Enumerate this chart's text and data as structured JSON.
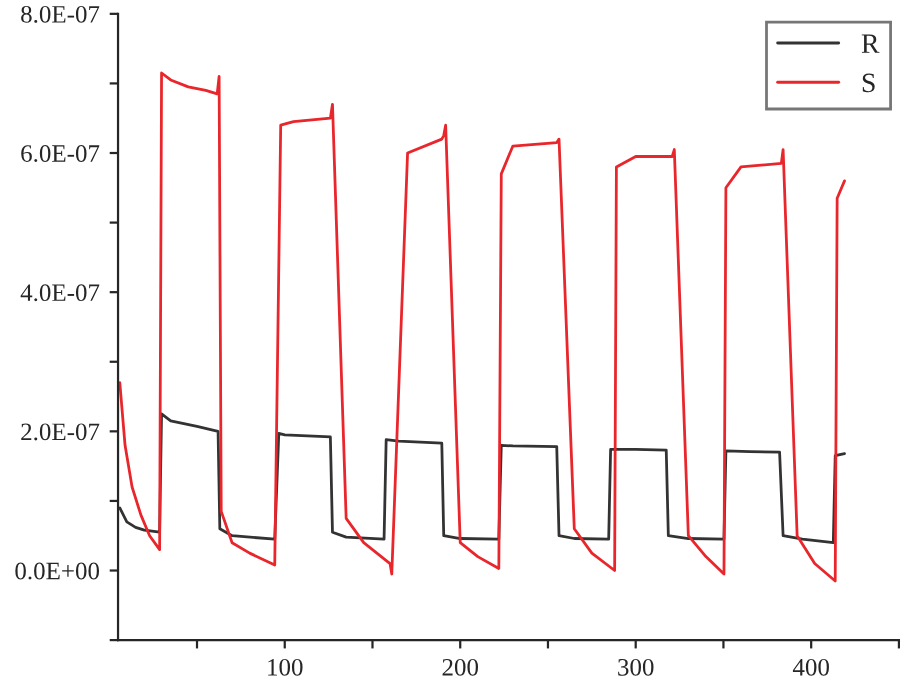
{
  "chart_data": {
    "type": "line",
    "xlim": [
      5,
      450
    ],
    "xticks": [
      {
        "value": 50,
        "label": null
      },
      100,
      {
        "value": 150,
        "label": null
      },
      200,
      {
        "value": 250,
        "label": null
      },
      300,
      {
        "value": 350,
        "label": null
      },
      400,
      {
        "value": 450,
        "label": null
      }
    ],
    "ylim": [
      -1e-07,
      8e-07
    ],
    "yticks": [
      {
        "value": -1e-07,
        "label": null
      },
      {
        "value": 0,
        "label": "0.0E+00"
      },
      {
        "value": 1e-07,
        "label": null
      },
      {
        "value": 2e-07,
        "label": "2.0E-07"
      },
      {
        "value": 3e-07,
        "label": null
      },
      {
        "value": 4e-07,
        "label": "4.0E-07"
      },
      {
        "value": 5e-07,
        "label": null
      },
      {
        "value": 6e-07,
        "label": "6.0E-07"
      },
      {
        "value": 7e-07,
        "label": null
      },
      {
        "value": 8e-07,
        "label": "8.0E-07"
      }
    ],
    "legend": "top right",
    "grid": false,
    "series": [
      {
        "name": "R",
        "color": "#333333",
        "x": [
          6,
          10,
          15,
          20,
          28.7,
          29.8,
          35,
          50,
          62,
          63,
          70,
          94.3,
          96.6,
          100,
          126,
          127.2,
          135,
          156.6,
          157.8,
          165,
          189.5,
          190.6,
          200,
          222,
          223.4,
          230,
          255,
          256.3,
          265,
          284.6,
          285.7,
          300,
          317.4,
          318.6,
          330,
          350.3,
          351.4,
          365,
          382,
          384,
          395,
          412.6,
          413.7,
          419
        ],
        "values": [
          9e-08,
          7e-08,
          6.2e-08,
          5.8e-08,
          5.5e-08,
          2.25e-07,
          2.15e-07,
          2.07e-07,
          2e-07,
          6e-08,
          5e-08,
          4.5e-08,
          1.97e-07,
          1.95e-07,
          1.92e-07,
          5.5e-08,
          4.8e-08,
          4.5e-08,
          1.88e-07,
          1.86e-07,
          1.83e-07,
          5e-08,
          4.6e-08,
          4.5e-08,
          1.8e-07,
          1.79e-07,
          1.78e-07,
          5e-08,
          4.6e-08,
          4.5e-08,
          1.74e-07,
          1.74e-07,
          1.73e-07,
          5e-08,
          4.6e-08,
          4.5e-08,
          1.72e-07,
          1.71e-07,
          1.7e-07,
          5e-08,
          4.5e-08,
          4e-08,
          1.65e-07,
          1.68e-07
        ]
      },
      {
        "name": "S",
        "color": "#e8262b",
        "x": [
          6,
          9,
          13,
          18,
          23,
          28.7,
          29.8,
          35,
          45,
          55,
          61.5,
          62.6,
          63.8,
          70,
          80,
          94.3,
          97.7,
          105,
          126,
          127.2,
          135,
          145,
          160,
          161,
          170,
          189.5,
          190.6,
          191.7,
          200,
          210,
          222,
          223.4,
          230,
          255,
          256.3,
          265,
          275,
          288,
          289,
          300,
          320.8,
          322,
          330,
          340,
          350.3,
          351.4,
          360,
          383,
          384,
          392,
          402,
          413.7,
          414.8,
          419
        ],
        "values": [
          2.7e-07,
          1.8e-07,
          1.2e-07,
          8e-08,
          5e-08,
          3e-08,
          7.15e-07,
          7.05e-07,
          6.95e-07,
          6.9e-07,
          6.85e-07,
          7.1e-07,
          8.5e-08,
          4e-08,
          2.5e-08,
          8e-09,
          6.4e-07,
          6.45e-07,
          6.5e-07,
          6.7e-07,
          7.5e-08,
          4e-08,
          1e-08,
          -5e-09,
          6e-07,
          6.2e-07,
          6.25e-07,
          6.4e-07,
          4e-08,
          2e-08,
          3e-09,
          5.7e-07,
          6.1e-07,
          6.15e-07,
          6.2e-07,
          6e-08,
          2.5e-08,
          0,
          5.8e-07,
          5.95e-07,
          5.95e-07,
          6.05e-07,
          5e-08,
          2e-08,
          -5e-09,
          5.5e-07,
          5.8e-07,
          5.85e-07,
          6.05e-07,
          5e-08,
          1e-08,
          -1.5e-08,
          5.35e-07,
          5.6e-07
        ]
      }
    ]
  }
}
